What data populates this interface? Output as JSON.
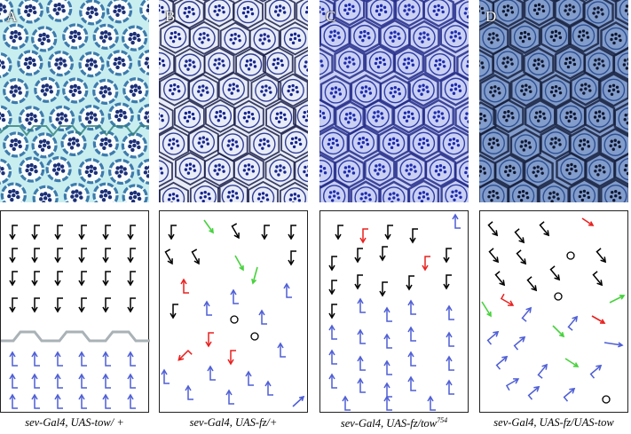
{
  "panels": [
    {
      "label": "A",
      "photo_style": {
        "bg": "#c9eef0",
        "ring": "#2e6fa5",
        "spot": "#1c2f78",
        "boundary": "#3d6fa8",
        "variant": "a"
      },
      "caption_main": "sev-Gal4, UAS-tow/ +",
      "caption_sup": ""
    },
    {
      "label": "B",
      "photo_style": {
        "bg": "#e8ecf6",
        "ring": "#1d2a8a",
        "spot": "#15248f",
        "boundary": "#1a1f4a",
        "variant": "b"
      },
      "caption_main": "sev-Gal4, UAS-fz/+",
      "caption_sup": ""
    },
    {
      "label": "C",
      "photo_style": {
        "bg": "#c9d0f2",
        "ring": "#1d2aa0",
        "spot": "#1d2ab0",
        "boundary": "#232c8a",
        "variant": "c"
      },
      "caption_main": "sev-Gal4, UAS-fz/tow",
      "caption_sup": "754"
    },
    {
      "label": "D",
      "photo_style": {
        "bg": "#93afe0",
        "ring": "#2a4e95",
        "spot": "#10172e",
        "boundary": "#1a2240",
        "variant": "d"
      },
      "caption_main": "sev-Gal4, UAS-fz/UAS-tow",
      "caption_sup": ""
    }
  ],
  "colors": {
    "black_arrow": "#000000",
    "blue_arrow": "#4f5fd6",
    "red_arrow": "#e8211f",
    "green_arrow": "#46d23c",
    "equator_line": "#a9b2b6",
    "panel_border": "#222222"
  },
  "schematic_A": {
    "grid": {
      "columns": 6,
      "black_rows": 4,
      "blue_rows": 3,
      "equator": true
    }
  }
}
